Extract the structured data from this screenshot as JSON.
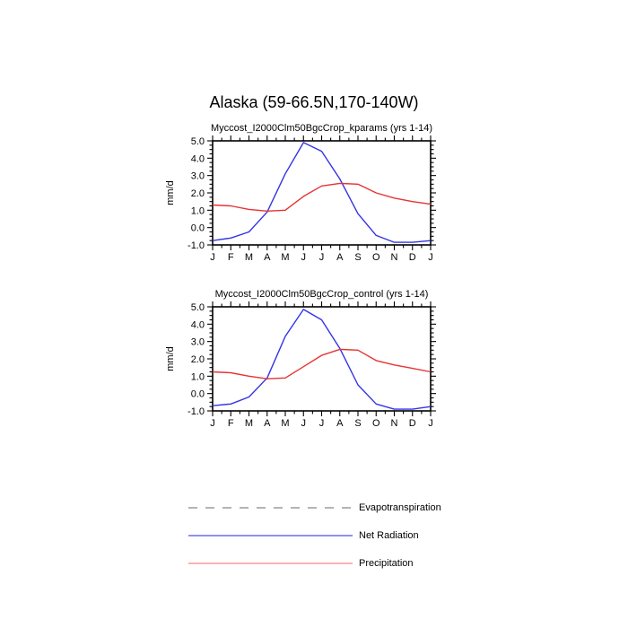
{
  "title": "Alaska (59-66.5N,170-140W)",
  "axis": {
    "ylabel": "mm/d",
    "x_tick_labels": [
      "J",
      "F",
      "M",
      "A",
      "M",
      "J",
      "J",
      "A",
      "S",
      "O",
      "N",
      "D",
      "J"
    ],
    "y_tick_labels": [
      "5.0",
      "4.0",
      "3.0",
      "2.0",
      "1.0",
      "0.0",
      "-1.0"
    ]
  },
  "chart_data": [
    {
      "type": "line",
      "title": "Myccost_I2000Clm50BgcCrop_kparams (yrs 1-14)",
      "xlabel": "",
      "ylabel": "mm/d",
      "categories": [
        "J",
        "F",
        "M",
        "A",
        "M",
        "J",
        "J",
        "A",
        "S",
        "O",
        "N",
        "D",
        "J"
      ],
      "ylim": [
        -1.0,
        5.0
      ],
      "yticks": [
        5.0,
        4.0,
        3.0,
        2.0,
        1.0,
        0.0,
        -1.0
      ],
      "grid": false,
      "series": [
        {
          "name": "Net Radiation",
          "color": "#3333e6",
          "values": [
            -0.75,
            -0.6,
            -0.25,
            0.9,
            3.1,
            4.9,
            4.4,
            2.8,
            0.8,
            -0.45,
            -0.85,
            -0.85,
            -0.75
          ]
        },
        {
          "name": "Precipitation",
          "color": "#e63333",
          "values": [
            1.3,
            1.25,
            1.05,
            0.95,
            1.0,
            1.8,
            2.4,
            2.55,
            2.5,
            2.0,
            1.7,
            1.5,
            1.35
          ]
        }
      ]
    },
    {
      "type": "line",
      "title": "Myccost_I2000Clm50BgcCrop_control (yrs 1-14)",
      "xlabel": "",
      "ylabel": "mm/d",
      "categories": [
        "J",
        "F",
        "M",
        "A",
        "M",
        "J",
        "J",
        "A",
        "S",
        "O",
        "N",
        "D",
        "J"
      ],
      "ylim": [
        -1.0,
        5.0
      ],
      "yticks": [
        5.0,
        4.0,
        3.0,
        2.0,
        1.0,
        0.0,
        -1.0
      ],
      "grid": false,
      "series": [
        {
          "name": "Net Radiation",
          "color": "#3333e6",
          "values": [
            -0.7,
            -0.6,
            -0.2,
            0.9,
            3.3,
            4.85,
            4.25,
            2.6,
            0.5,
            -0.6,
            -0.9,
            -0.9,
            -0.75
          ]
        },
        {
          "name": "Precipitation",
          "color": "#e63333",
          "values": [
            1.25,
            1.2,
            1.0,
            0.85,
            0.9,
            1.55,
            2.2,
            2.55,
            2.5,
            1.9,
            1.65,
            1.45,
            1.25
          ]
        }
      ]
    }
  ],
  "legend": {
    "position": "bottom",
    "items": [
      {
        "label": "Evapotranspiration",
        "color": "#b4b4b4",
        "style": "dashed"
      },
      {
        "label": "Net Radiation",
        "color": "#9090ee",
        "style": "solid"
      },
      {
        "label": "Precipitation",
        "color": "#ffb0b0",
        "style": "solid"
      }
    ]
  }
}
